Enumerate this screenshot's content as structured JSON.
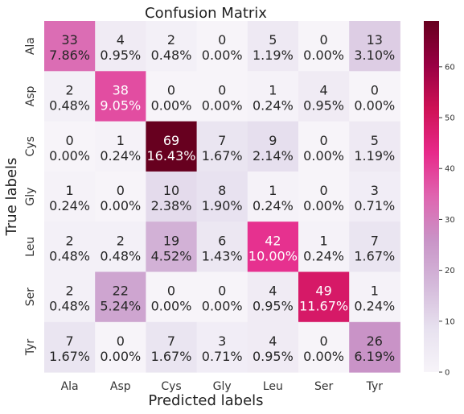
{
  "chart_data": {
    "type": "heatmap",
    "title": "Confusion Matrix",
    "xlabel": "Predicted labels",
    "ylabel": "True labels",
    "x_categories": [
      "Ala",
      "Asp",
      "Cys",
      "Gly",
      "Leu",
      "Ser",
      "Tyr"
    ],
    "y_categories": [
      "Ala",
      "Asp",
      "Cys",
      "Gly",
      "Leu",
      "Ser",
      "Tyr"
    ],
    "values": [
      [
        33,
        4,
        2,
        0,
        5,
        0,
        13
      ],
      [
        2,
        38,
        0,
        0,
        1,
        4,
        0
      ],
      [
        0,
        1,
        69,
        7,
        9,
        0,
        5
      ],
      [
        1,
        0,
        10,
        8,
        1,
        0,
        3
      ],
      [
        2,
        2,
        19,
        6,
        42,
        1,
        7
      ],
      [
        2,
        22,
        0,
        0,
        4,
        49,
        1
      ],
      [
        7,
        0,
        7,
        3,
        4,
        0,
        26
      ]
    ],
    "percentages": [
      [
        "7.86%",
        "0.95%",
        "0.48%",
        "0.00%",
        "1.19%",
        "0.00%",
        "3.10%"
      ],
      [
        "0.48%",
        "9.05%",
        "0.00%",
        "0.00%",
        "0.24%",
        "0.95%",
        "0.00%"
      ],
      [
        "0.00%",
        "0.24%",
        "16.43%",
        "1.67%",
        "2.14%",
        "0.00%",
        "1.19%"
      ],
      [
        "0.24%",
        "0.00%",
        "2.38%",
        "1.90%",
        "0.24%",
        "0.00%",
        "0.71%"
      ],
      [
        "0.48%",
        "0.48%",
        "4.52%",
        "1.43%",
        "10.00%",
        "0.24%",
        "1.67%"
      ],
      [
        "0.48%",
        "5.24%",
        "0.00%",
        "0.00%",
        "0.95%",
        "11.67%",
        "0.24%"
      ],
      [
        "1.67%",
        "0.00%",
        "1.67%",
        "0.71%",
        "0.95%",
        "0.00%",
        "6.19%"
      ]
    ],
    "colorbar": {
      "min": 0,
      "max": 69,
      "ticks": [
        0,
        10,
        20,
        30,
        40,
        50,
        60
      ]
    },
    "colormap": [
      "#f7f4f9",
      "#e7e1ef",
      "#d4b9da",
      "#c994c7",
      "#df65b0",
      "#e7298a",
      "#ce1256",
      "#980043",
      "#67001f"
    ],
    "grid": false
  }
}
